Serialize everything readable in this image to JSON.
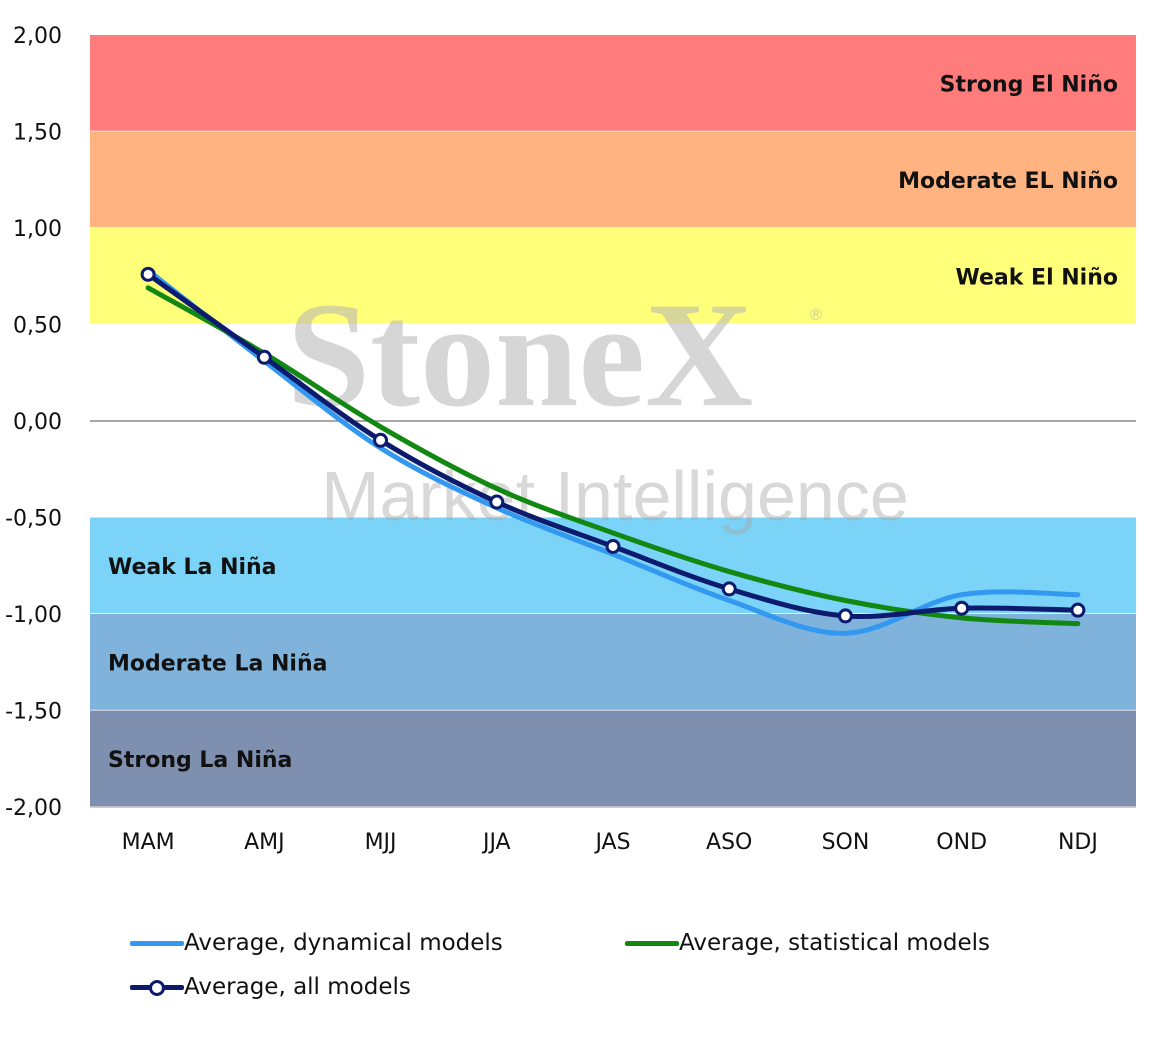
{
  "watermark": {
    "brand": "StoneX",
    "reg": "®",
    "sub": "Market Intelligence"
  },
  "chart_data": {
    "type": "line",
    "categories": [
      "MAM",
      "AMJ",
      "MJJ",
      "JJA",
      "JAS",
      "ASO",
      "SON",
      "OND",
      "NDJ"
    ],
    "ylim": [
      -2.0,
      2.0
    ],
    "yticks": [
      "2,00",
      "1,50",
      "1,00",
      "0,50",
      "0,00",
      "-0,50",
      "-1,00",
      "-1,50",
      "-2,00"
    ],
    "ytick_values": [
      2.0,
      1.5,
      1.0,
      0.5,
      0.0,
      -0.5,
      -1.0,
      -1.5,
      -2.0
    ],
    "bands": [
      {
        "label": "Strong El Niño",
        "from": 1.5,
        "to": 2.0,
        "color": "#ff7c7c",
        "label_side": "right"
      },
      {
        "label": "Moderate EL Niño",
        "from": 1.0,
        "to": 1.5,
        "color": "#ffb381",
        "label_side": "right"
      },
      {
        "label": "Weak El Niño",
        "from": 0.5,
        "to": 1.0,
        "color": "#ffff7a",
        "label_side": "right"
      },
      {
        "label": "Weak La Niña",
        "from": -1.0,
        "to": -0.5,
        "color": "#7bd3f7",
        "label_side": "left"
      },
      {
        "label": "Moderate La Niña",
        "from": -1.5,
        "to": -1.0,
        "color": "#7fb3dc",
        "label_side": "left"
      },
      {
        "label": "Strong La Niña",
        "from": -2.0,
        "to": -1.5,
        "color": "#7f8fb0",
        "label_side": "left"
      }
    ],
    "series": [
      {
        "name": "Average, dynamical models",
        "color": "#3399f0",
        "width": 5,
        "markers": false,
        "values": [
          0.78,
          0.31,
          -0.14,
          -0.45,
          -0.69,
          -0.93,
          -1.1,
          -0.9,
          -0.9
        ]
      },
      {
        "name": "Average, statistical models",
        "color": "#118811",
        "width": 5,
        "markers": false,
        "values": [
          0.69,
          0.35,
          -0.03,
          -0.35,
          -0.58,
          -0.78,
          -0.93,
          -1.02,
          -1.05
        ]
      },
      {
        "name": "Average, all models",
        "color": "#0d1b6e",
        "width": 5,
        "markers": true,
        "values": [
          0.76,
          0.33,
          -0.1,
          -0.42,
          -0.65,
          -0.87,
          -1.01,
          -0.97,
          -0.98
        ]
      }
    ]
  },
  "legend": {
    "items": [
      {
        "label": "Average, dynamical models"
      },
      {
        "label": "Average, statistical models"
      },
      {
        "label": "Average, all models"
      }
    ]
  }
}
